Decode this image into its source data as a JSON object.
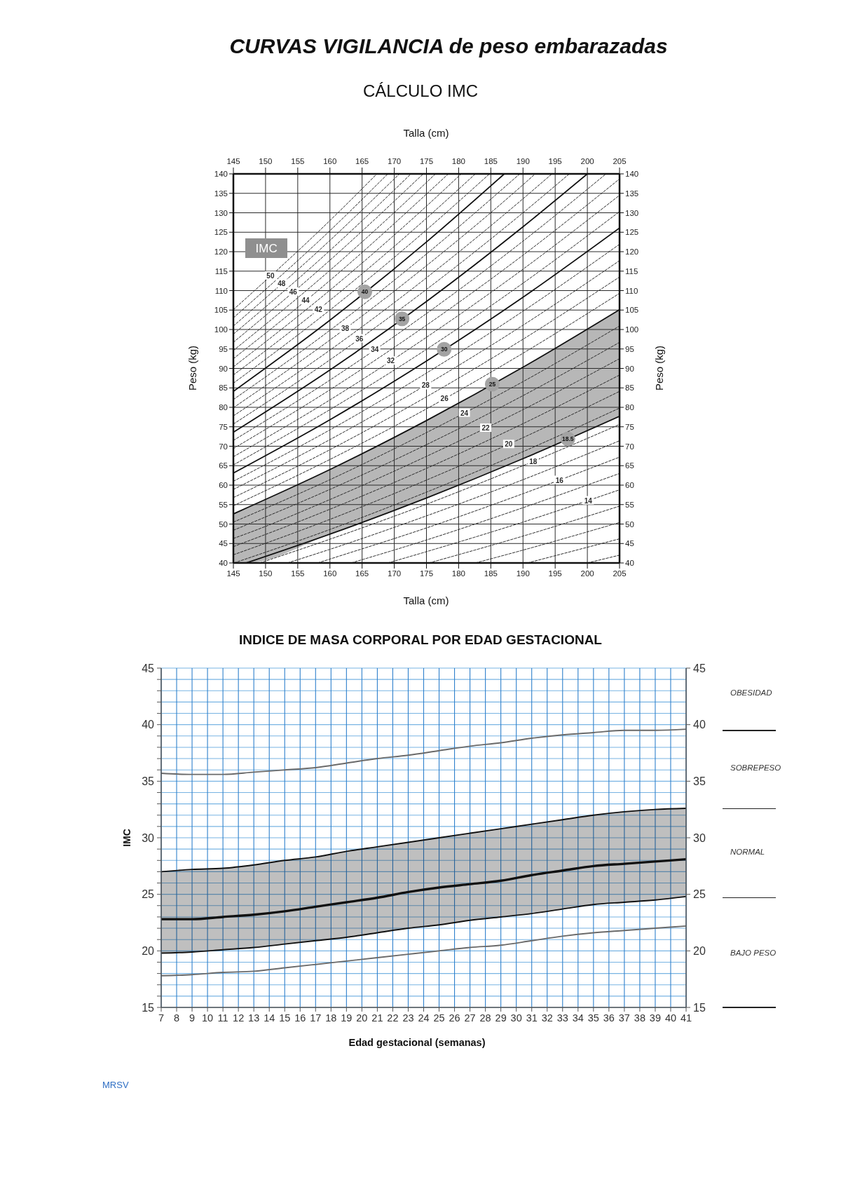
{
  "chart_data": [
    {
      "type": "line",
      "title": "CURVAS VIGILANCIA de peso embarazadas",
      "subtitle": "CÁLCULO IMC",
      "xlabel": "Talla (cm)",
      "x2label": "Talla (cm)",
      "ylabel": "Peso (kg)",
      "y2label": "Peso (kg)",
      "annotations": [
        "IMC"
      ],
      "x": [
        145,
        160,
        175,
        190,
        205
      ],
      "xlim": [
        145,
        205
      ],
      "xticks": [
        145,
        150,
        155,
        160,
        165,
        170,
        175,
        180,
        185,
        190,
        195,
        200,
        205
      ],
      "x2lim": [
        145,
        205
      ],
      "x2ticks": [
        145,
        150,
        155,
        160,
        165,
        170,
        175,
        180,
        185,
        190,
        195,
        200,
        205
      ],
      "ylim": [
        40,
        140
      ],
      "yticks": [
        40,
        45,
        50,
        55,
        60,
        65,
        70,
        75,
        80,
        85,
        90,
        95,
        100,
        105,
        110,
        115,
        120,
        125,
        130,
        135,
        140
      ],
      "y2lim": [
        40,
        140
      ],
      "y2ticks": [
        40,
        45,
        50,
        55,
        60,
        65,
        70,
        75,
        80,
        85,
        90,
        95,
        100,
        105,
        110,
        115,
        120,
        125,
        130,
        135,
        140
      ],
      "grid": true,
      "line_style": "dashed",
      "series": [
        {
          "name": "50",
          "color": "#2b2b2b",
          "x": [
            145,
            160,
            167.3
          ],
          "values": [
            105.1,
            128,
            140
          ]
        },
        {
          "color": "#2b2b2b",
          "x": [
            145,
            160,
            169
          ],
          "values": [
            103,
            125.4,
            140
          ]
        },
        {
          "name": "48",
          "color": "#2b2b2b",
          "x": [
            145,
            160,
            170.8
          ],
          "values": [
            100.9,
            122.9,
            140
          ]
        },
        {
          "color": "#2b2b2b",
          "x": [
            145,
            160,
            172.6
          ],
          "values": [
            98.8,
            120.3,
            140
          ]
        },
        {
          "name": "46",
          "color": "#2b2b2b",
          "x": [
            145,
            160,
            174.5
          ],
          "values": [
            96.7,
            117.8,
            140
          ]
        },
        {
          "color": "#2b2b2b",
          "x": [
            145,
            160,
            175,
            176.4
          ],
          "values": [
            94.6,
            115.2,
            137.8,
            140
          ]
        },
        {
          "name": "44",
          "color": "#2b2b2b",
          "x": [
            145,
            160,
            175,
            178.4
          ],
          "values": [
            92.5,
            112.6,
            134.8,
            140
          ]
        },
        {
          "color": "#2b2b2b",
          "x": [
            145,
            160,
            175,
            180.4
          ],
          "values": [
            90.4,
            110.1,
            131.7,
            140
          ]
        },
        {
          "name": "42",
          "color": "#2b2b2b",
          "x": [
            145,
            160,
            175,
            182.6
          ],
          "values": [
            88.3,
            107.5,
            128.6,
            140
          ]
        },
        {
          "color": "#2b2b2b",
          "x": [
            145,
            160,
            175,
            184.8
          ],
          "values": [
            86.2,
            105,
            125.6,
            140
          ]
        },
        {
          "name": "40",
          "color": "#111111",
          "line_style": "solid",
          "x": [
            145,
            160,
            175,
            187.1
          ],
          "values": [
            84.1,
            102.4,
            122.5,
            140
          ]
        },
        {
          "color": "#2b2b2b",
          "x": [
            145,
            160,
            175,
            189.5
          ],
          "values": [
            82,
            99.8,
            119.4,
            140
          ]
        },
        {
          "name": "38",
          "color": "#2b2b2b",
          "x": [
            145,
            160,
            175,
            190,
            191.9
          ],
          "values": [
            79.9,
            97.3,
            116.4,
            137.2,
            140
          ]
        },
        {
          "color": "#2b2b2b",
          "x": [
            145,
            160,
            175,
            190,
            194.5
          ],
          "values": [
            77.8,
            94.7,
            113.3,
            133.6,
            140
          ]
        },
        {
          "name": "36",
          "color": "#2b2b2b",
          "x": [
            145,
            160,
            175,
            190,
            197.2
          ],
          "values": [
            75.7,
            92.2,
            110.3,
            130,
            140
          ]
        },
        {
          "name": "35",
          "color": "#111111",
          "line_style": "solid",
          "x": [
            145,
            160,
            175,
            190,
            200
          ],
          "values": [
            73.6,
            89.6,
            107.2,
            126.4,
            140
          ]
        },
        {
          "name": "34",
          "color": "#2b2b2b",
          "x": [
            145,
            160,
            175,
            190,
            202.9
          ],
          "values": [
            71.5,
            87,
            104.1,
            122.7,
            140
          ]
        },
        {
          "color": "#2b2b2b",
          "values": [
            69.4,
            84.5,
            101.1,
            119.1,
            138.7
          ]
        },
        {
          "name": "32",
          "color": "#2b2b2b",
          "values": [
            67.3,
            81.9,
            98,
            115.5,
            134.5
          ]
        },
        {
          "color": "#2b2b2b",
          "values": [
            65.2,
            79.4,
            94.9,
            111.9,
            130.3
          ]
        },
        {
          "name": "30",
          "color": "#111111",
          "line_style": "solid",
          "values": [
            63.1,
            76.8,
            91.9,
            108.3,
            126.1
          ]
        },
        {
          "color": "#2b2b2b",
          "values": [
            61,
            74.2,
            88.8,
            104.7,
            121.9
          ]
        },
        {
          "name": "28",
          "color": "#2b2b2b",
          "values": [
            58.9,
            71.7,
            85.8,
            101.1,
            117.7
          ]
        },
        {
          "color": "#2b2b2b",
          "values": [
            56.8,
            69.1,
            82.7,
            97.5,
            113.5
          ]
        },
        {
          "name": "26",
          "color": "#2b2b2b",
          "values": [
            54.7,
            66.6,
            79.6,
            93.9,
            109.3
          ]
        },
        {
          "name": "25",
          "color": "#111111",
          "line_style": "solid",
          "values": [
            52.6,
            64,
            76.6,
            90.3,
            105.1
          ]
        },
        {
          "name": "24",
          "color": "#2b2b2b",
          "values": [
            50.5,
            61.4,
            73.5,
            86.6,
            100.9
          ]
        },
        {
          "color": "#2b2b2b",
          "values": [
            48.4,
            58.9,
            70.4,
            83,
            96.7
          ]
        },
        {
          "name": "22",
          "color": "#2b2b2b",
          "x": [
            145,
            147,
            160,
            175,
            190,
            205
          ],
          "values": [
            46.3,
            47.5,
            56.3,
            67.4,
            79.4,
            92.5
          ],
          "lower": [
            40,
            40,
            47.4,
            56.7,
            66.8,
            77.7
          ],
          "upper": [
            52.6,
            54,
            64,
            76.6,
            90.3,
            105.1
          ]
        },
        {
          "color": "#2b2b2b",
          "values": [
            44.2,
            53.8,
            64.3,
            75.8,
            88.3
          ]
        },
        {
          "name": "20",
          "color": "#2b2b2b",
          "values": [
            42.1,
            51.2,
            61.3,
            72.2,
            84.1
          ]
        },
        {
          "color": "#2b2b2b",
          "x": [
            145.1,
            160,
            175,
            190,
            205
          ],
          "values": [
            40,
            48.6,
            58.2,
            68.6,
            79.8
          ]
        },
        {
          "name": "18.5",
          "color": "#111111",
          "line_style": "solid",
          "x": [
            147,
            160,
            175,
            190,
            205
          ],
          "values": [
            40,
            47.4,
            56.7,
            66.8,
            77.7
          ]
        },
        {
          "name": "18",
          "color": "#2b2b2b",
          "x": [
            149.1,
            160,
            175,
            190,
            205
          ],
          "values": [
            40,
            46.1,
            55.1,
            65,
            75.6
          ]
        },
        {
          "color": "#2b2b2b",
          "x": [
            153.4,
            160,
            175,
            190,
            205
          ],
          "values": [
            40,
            43.5,
            52.1,
            61.4,
            71.4
          ]
        },
        {
          "name": "16",
          "color": "#2b2b2b",
          "x": [
            158.1,
            160,
            175,
            190,
            205
          ],
          "values": [
            40,
            41,
            49,
            57.8,
            67.2
          ]
        },
        {
          "color": "#2b2b2b",
          "x": [
            163.3,
            175,
            190,
            205
          ],
          "values": [
            40,
            45.9,
            54.2,
            63
          ]
        },
        {
          "name": "14",
          "color": "#2b2b2b",
          "x": [
            169,
            175,
            190,
            205
          ],
          "values": [
            40,
            42.9,
            50.5,
            58.8
          ]
        },
        {
          "color": "#2b2b2b",
          "x": [
            175.4,
            190,
            205
          ],
          "values": [
            40,
            46.9,
            54.6
          ]
        },
        {
          "color": "#2b2b2b",
          "x": [
            182.6,
            190,
            205
          ],
          "values": [
            40,
            43.3,
            50.4
          ]
        },
        {
          "color": "#2b2b2b",
          "x": [
            190.7,
            205
          ],
          "values": [
            40,
            46.2
          ]
        },
        {
          "color": "#2b2b2b",
          "x": [
            200,
            205
          ],
          "values": [
            40,
            42
          ]
        }
      ]
    },
    {
      "type": "line",
      "title": "INDICE DE MASA CORPORAL POR EDAD GESTACIONAL",
      "xlabel": "Edad gestacional (semanas)",
      "ylabel": "IMC",
      "annotations": [
        "OBESIDAD",
        "SOBREPESO",
        "NORMAL",
        "BAJO PESO",
        "MRSV"
      ],
      "x": [
        7,
        9,
        11,
        13,
        15,
        17,
        19,
        21,
        23,
        25,
        27,
        29,
        31,
        33,
        35,
        37,
        39,
        41
      ],
      "xlim": [
        7,
        41
      ],
      "xticks": [
        7,
        8,
        9,
        10,
        11,
        12,
        13,
        14,
        15,
        16,
        17,
        18,
        19,
        20,
        21,
        22,
        23,
        24,
        25,
        26,
        27,
        28,
        29,
        30,
        31,
        32,
        33,
        34,
        35,
        36,
        37,
        38,
        39,
        40,
        41
      ],
      "ylim": [
        15,
        45
      ],
      "yticks": [
        15,
        {
          "value": 16,
          "label": null
        },
        {
          "value": 17,
          "label": null
        },
        {
          "value": 18,
          "label": null
        },
        {
          "value": 19,
          "label": null
        },
        20,
        {
          "value": 21,
          "label": null
        },
        {
          "value": 22,
          "label": null
        },
        {
          "value": 23,
          "label": null
        },
        {
          "value": 24,
          "label": null
        },
        25,
        {
          "value": 26,
          "label": null
        },
        {
          "value": 27,
          "label": null
        },
        {
          "value": 28,
          "label": null
        },
        {
          "value": 29,
          "label": null
        },
        30,
        {
          "value": 31,
          "label": null
        },
        {
          "value": 32,
          "label": null
        },
        {
          "value": 33,
          "label": null
        },
        {
          "value": 34,
          "label": null
        },
        35,
        {
          "value": 36,
          "label": null
        },
        {
          "value": 37,
          "label": null
        },
        {
          "value": 38,
          "label": null
        },
        {
          "value": 39,
          "label": null
        },
        40,
        {
          "value": 41,
          "label": null
        },
        {
          "value": 42,
          "label": null
        },
        {
          "value": 43,
          "label": null
        },
        {
          "value": 44,
          "label": null
        },
        45
      ],
      "y2lim": [
        15,
        45
      ],
      "y2ticks": [
        15,
        20,
        25,
        30,
        35,
        40,
        45
      ],
      "grid": true,
      "series": [
        {
          "color": "#6a6a6a",
          "values": [
            35.7,
            35.6,
            35.6,
            35.8,
            36.0,
            36.2,
            36.6,
            37.0,
            37.3,
            37.7,
            38.1,
            38.4,
            38.8,
            39.1,
            39.3,
            39.5,
            39.5,
            39.6
          ]
        },
        {
          "color": "#111111",
          "values": [
            27.0,
            27.2,
            27.3,
            27.6,
            28.0,
            28.3,
            28.8,
            29.2,
            29.6,
            30.0,
            30.4,
            30.8,
            31.2,
            31.6,
            32.0,
            32.3,
            32.5,
            32.6
          ]
        },
        {
          "color": "#111111",
          "values": [
            22.8,
            22.8,
            23.0,
            23.2,
            23.5,
            23.9,
            24.3,
            24.7,
            25.2,
            25.6,
            25.9,
            26.2,
            26.7,
            27.1,
            27.5,
            27.7,
            27.9,
            28.1
          ],
          "lower": [
            19.8,
            19.9,
            20.1,
            20.3,
            20.6,
            20.9,
            21.2,
            21.6,
            22.0,
            22.3,
            22.7,
            23.0,
            23.3,
            23.7,
            24.1,
            24.3,
            24.5,
            24.8
          ],
          "upper": [
            27.0,
            27.2,
            27.3,
            27.6,
            28.0,
            28.3,
            28.8,
            29.2,
            29.6,
            30.0,
            30.4,
            30.8,
            31.2,
            31.6,
            32.0,
            32.3,
            32.5,
            32.6
          ]
        },
        {
          "color": "#111111",
          "values": [
            19.8,
            19.9,
            20.1,
            20.3,
            20.6,
            20.9,
            21.2,
            21.6,
            22.0,
            22.3,
            22.7,
            23.0,
            23.3,
            23.7,
            24.1,
            24.3,
            24.5,
            24.8
          ]
        },
        {
          "color": "#6a6a6a",
          "values": [
            17.8,
            17.9,
            18.1,
            18.2,
            18.5,
            18.8,
            19.1,
            19.4,
            19.7,
            20.0,
            20.3,
            20.5,
            20.9,
            21.3,
            21.6,
            21.8,
            22.0,
            22.2
          ]
        }
      ]
    }
  ]
}
